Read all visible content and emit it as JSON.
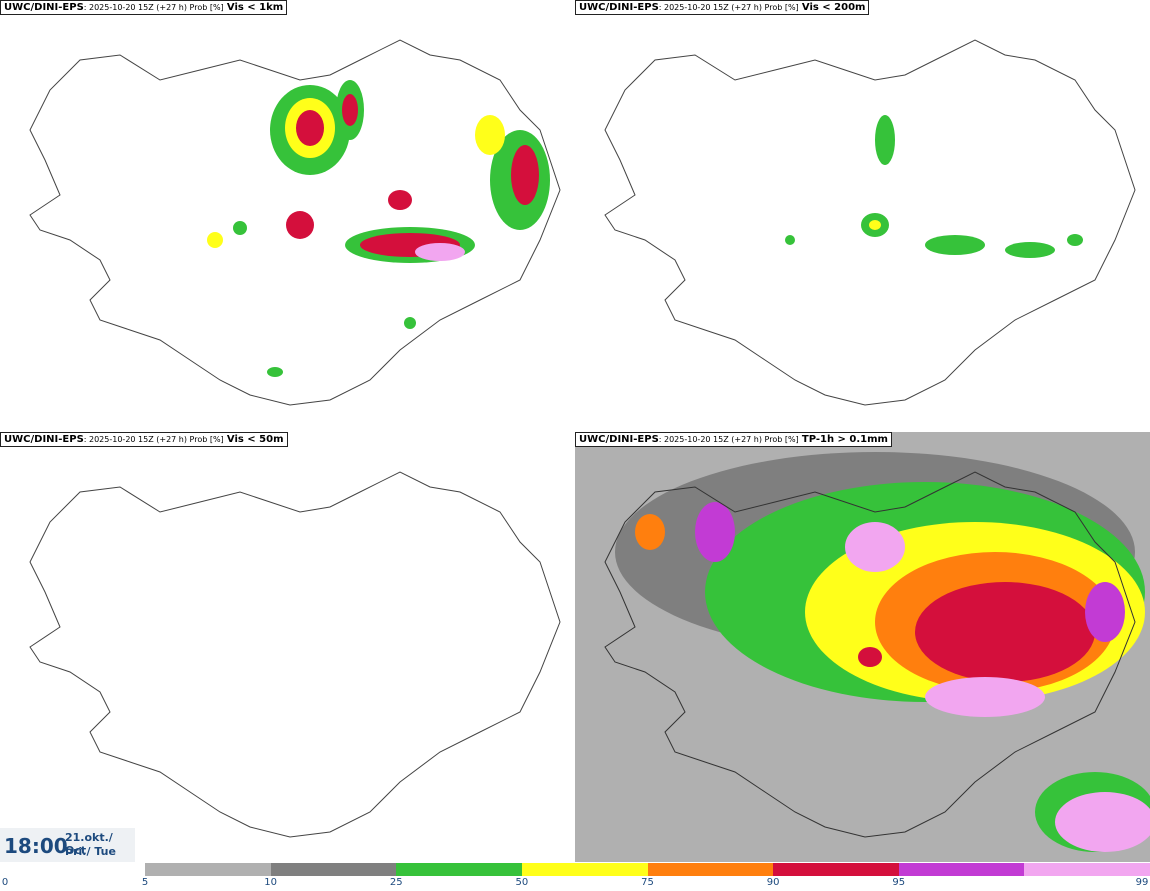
{
  "panels": [
    {
      "model": "UWC/DINI-EPS",
      "meta": ": 2025-10-20 15Z (+27 h) Prob [%]",
      "variable": "Vis < 1km"
    },
    {
      "model": "UWC/DINI-EPS",
      "meta": ": 2025-10-20 15Z (+27 h) Prob [%]",
      "variable": "Vis < 200m"
    },
    {
      "model": "UWC/DINI-EPS",
      "meta": ": 2025-10-20 15Z (+27 h) Prob [%]",
      "variable": "Vis < 50m"
    },
    {
      "model": "UWC/DINI-EPS",
      "meta": ": 2025-10-20 15Z (+27 h) Prob [%]",
      "variable": "TP-1h > 0.1mm"
    }
  ],
  "valid_time": {
    "time": "18:00",
    "date": "21.okt./ Oct",
    "day": "Þri./ Tue"
  },
  "legend": {
    "ticks": [
      "0",
      "5",
      "10",
      "25",
      "50",
      "75",
      "90",
      "95",
      "99"
    ],
    "colors": [
      "#b0b0b0",
      "#7f7f7f",
      "#36c23a",
      "#ffff1a",
      "#ff7f0e",
      "#d40f3c",
      "#c23bd4",
      "#f2a6f0"
    ]
  }
}
